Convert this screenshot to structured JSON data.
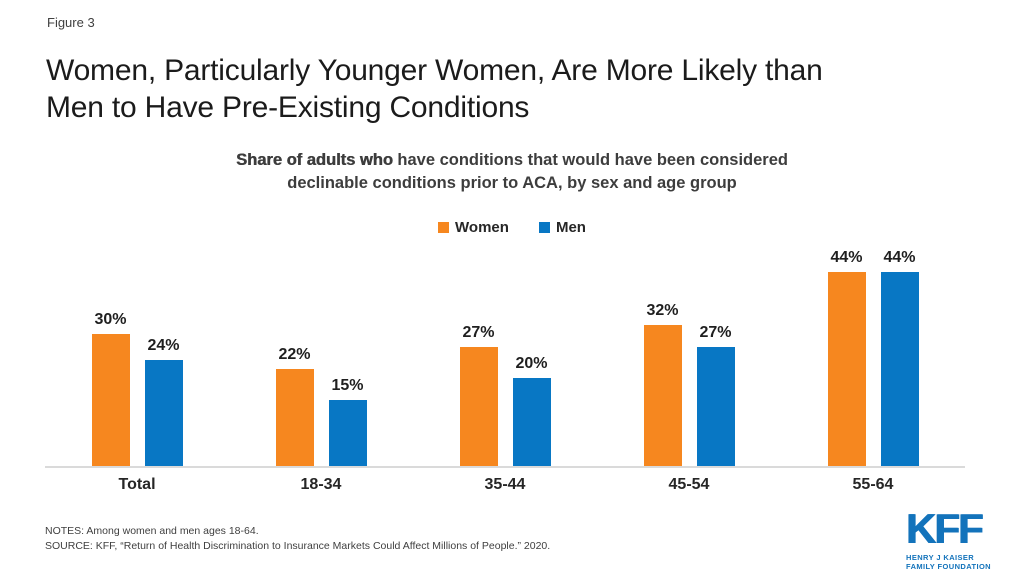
{
  "header": {
    "figure_label": "Figure 3",
    "title_line1": "Women, Particularly Younger Women, Are More Likely than",
    "title_line2": "Men to Have Pre-Existing Conditions"
  },
  "subtitle": {
    "line1_bold": "Share of adults who",
    "line1_rest": " have conditions that would have been considered",
    "line2": "declinable conditions prior to ACA, by sex and age group"
  },
  "chart_data": {
    "type": "bar",
    "title": "Women, Particularly Younger Women, Are More Likely than Men to Have Pre-Existing Conditions",
    "subtitle": "Share of adults who have conditions that would have been considered declinable conditions prior to ACA, by sex and age group",
    "categories": [
      "Total",
      "18-34",
      "35-44",
      "45-54",
      "55-64"
    ],
    "series": [
      {
        "name": "Women",
        "color": "#F6871F",
        "values": [
          30,
          22,
          27,
          32,
          44
        ]
      },
      {
        "name": "Men",
        "color": "#0877C4",
        "values": [
          24,
          15,
          20,
          27,
          44
        ]
      }
    ],
    "value_suffix": "%",
    "xlabel": "",
    "ylabel": "",
    "ylim": [
      0,
      49.5
    ],
    "grid": false,
    "legend_position": "top",
    "data_labels": true
  },
  "footer": {
    "notes": "NOTES: Among women and men ages 18-64.",
    "source": "SOURCE: KFF, “Return of Health Discrimination to Insurance Markets Could Affect Millions of People.” 2020."
  },
  "logo": {
    "text": "KFF",
    "line1": "HENRY J KAISER",
    "line2": "FAMILY FOUNDATION",
    "color": "#1373BB"
  }
}
